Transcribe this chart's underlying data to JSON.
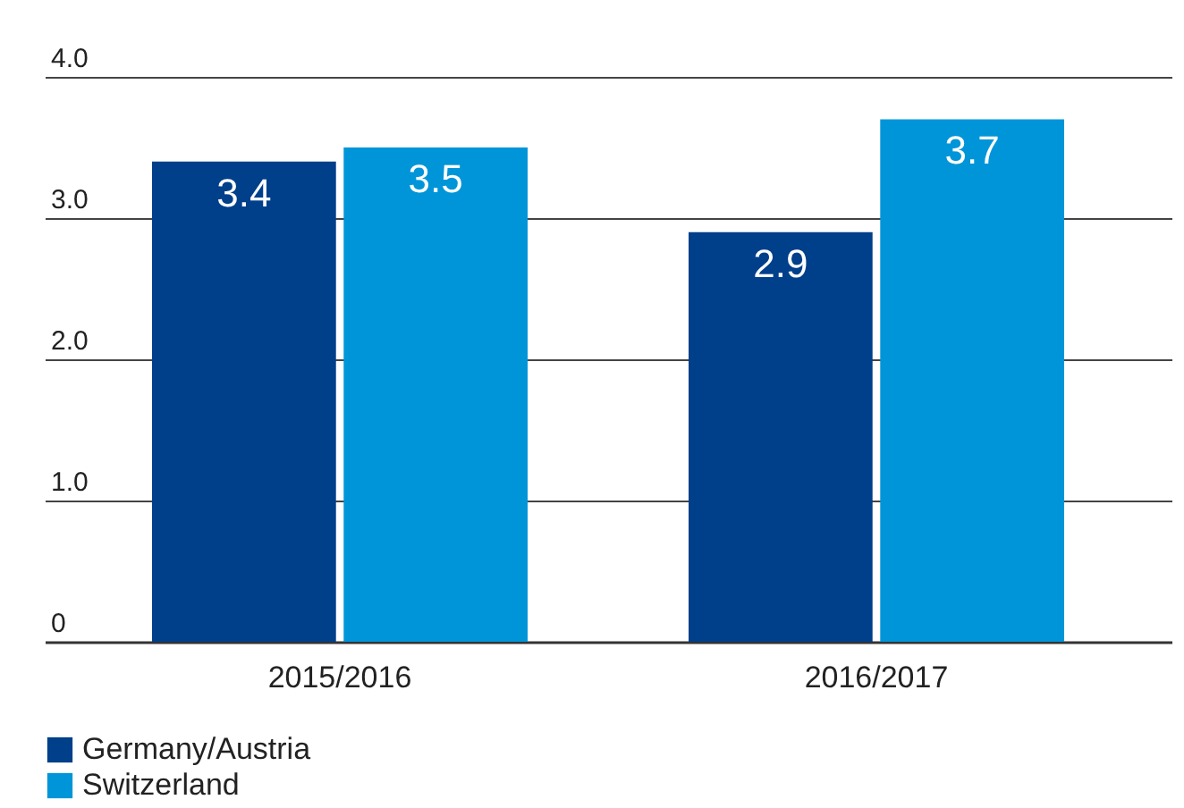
{
  "chart_data": {
    "type": "bar",
    "categories": [
      "2015/2016",
      "2016/2017"
    ],
    "series": [
      {
        "name": "Germany/Austria",
        "color": "#003f8a",
        "values": [
          3.4,
          2.9
        ]
      },
      {
        "name": "Switzerland",
        "color": "#0095d8",
        "values": [
          3.5,
          3.7
        ]
      }
    ],
    "ylim": [
      0,
      4
    ],
    "yticks": [
      {
        "value": 4,
        "label": "4.0"
      },
      {
        "value": 3,
        "label": "3.0"
      },
      {
        "value": 2,
        "label": "2.0"
      },
      {
        "value": 1,
        "label": "1.0"
      },
      0
    ],
    "grid": true,
    "data_labels": true,
    "legend": "bottom"
  }
}
